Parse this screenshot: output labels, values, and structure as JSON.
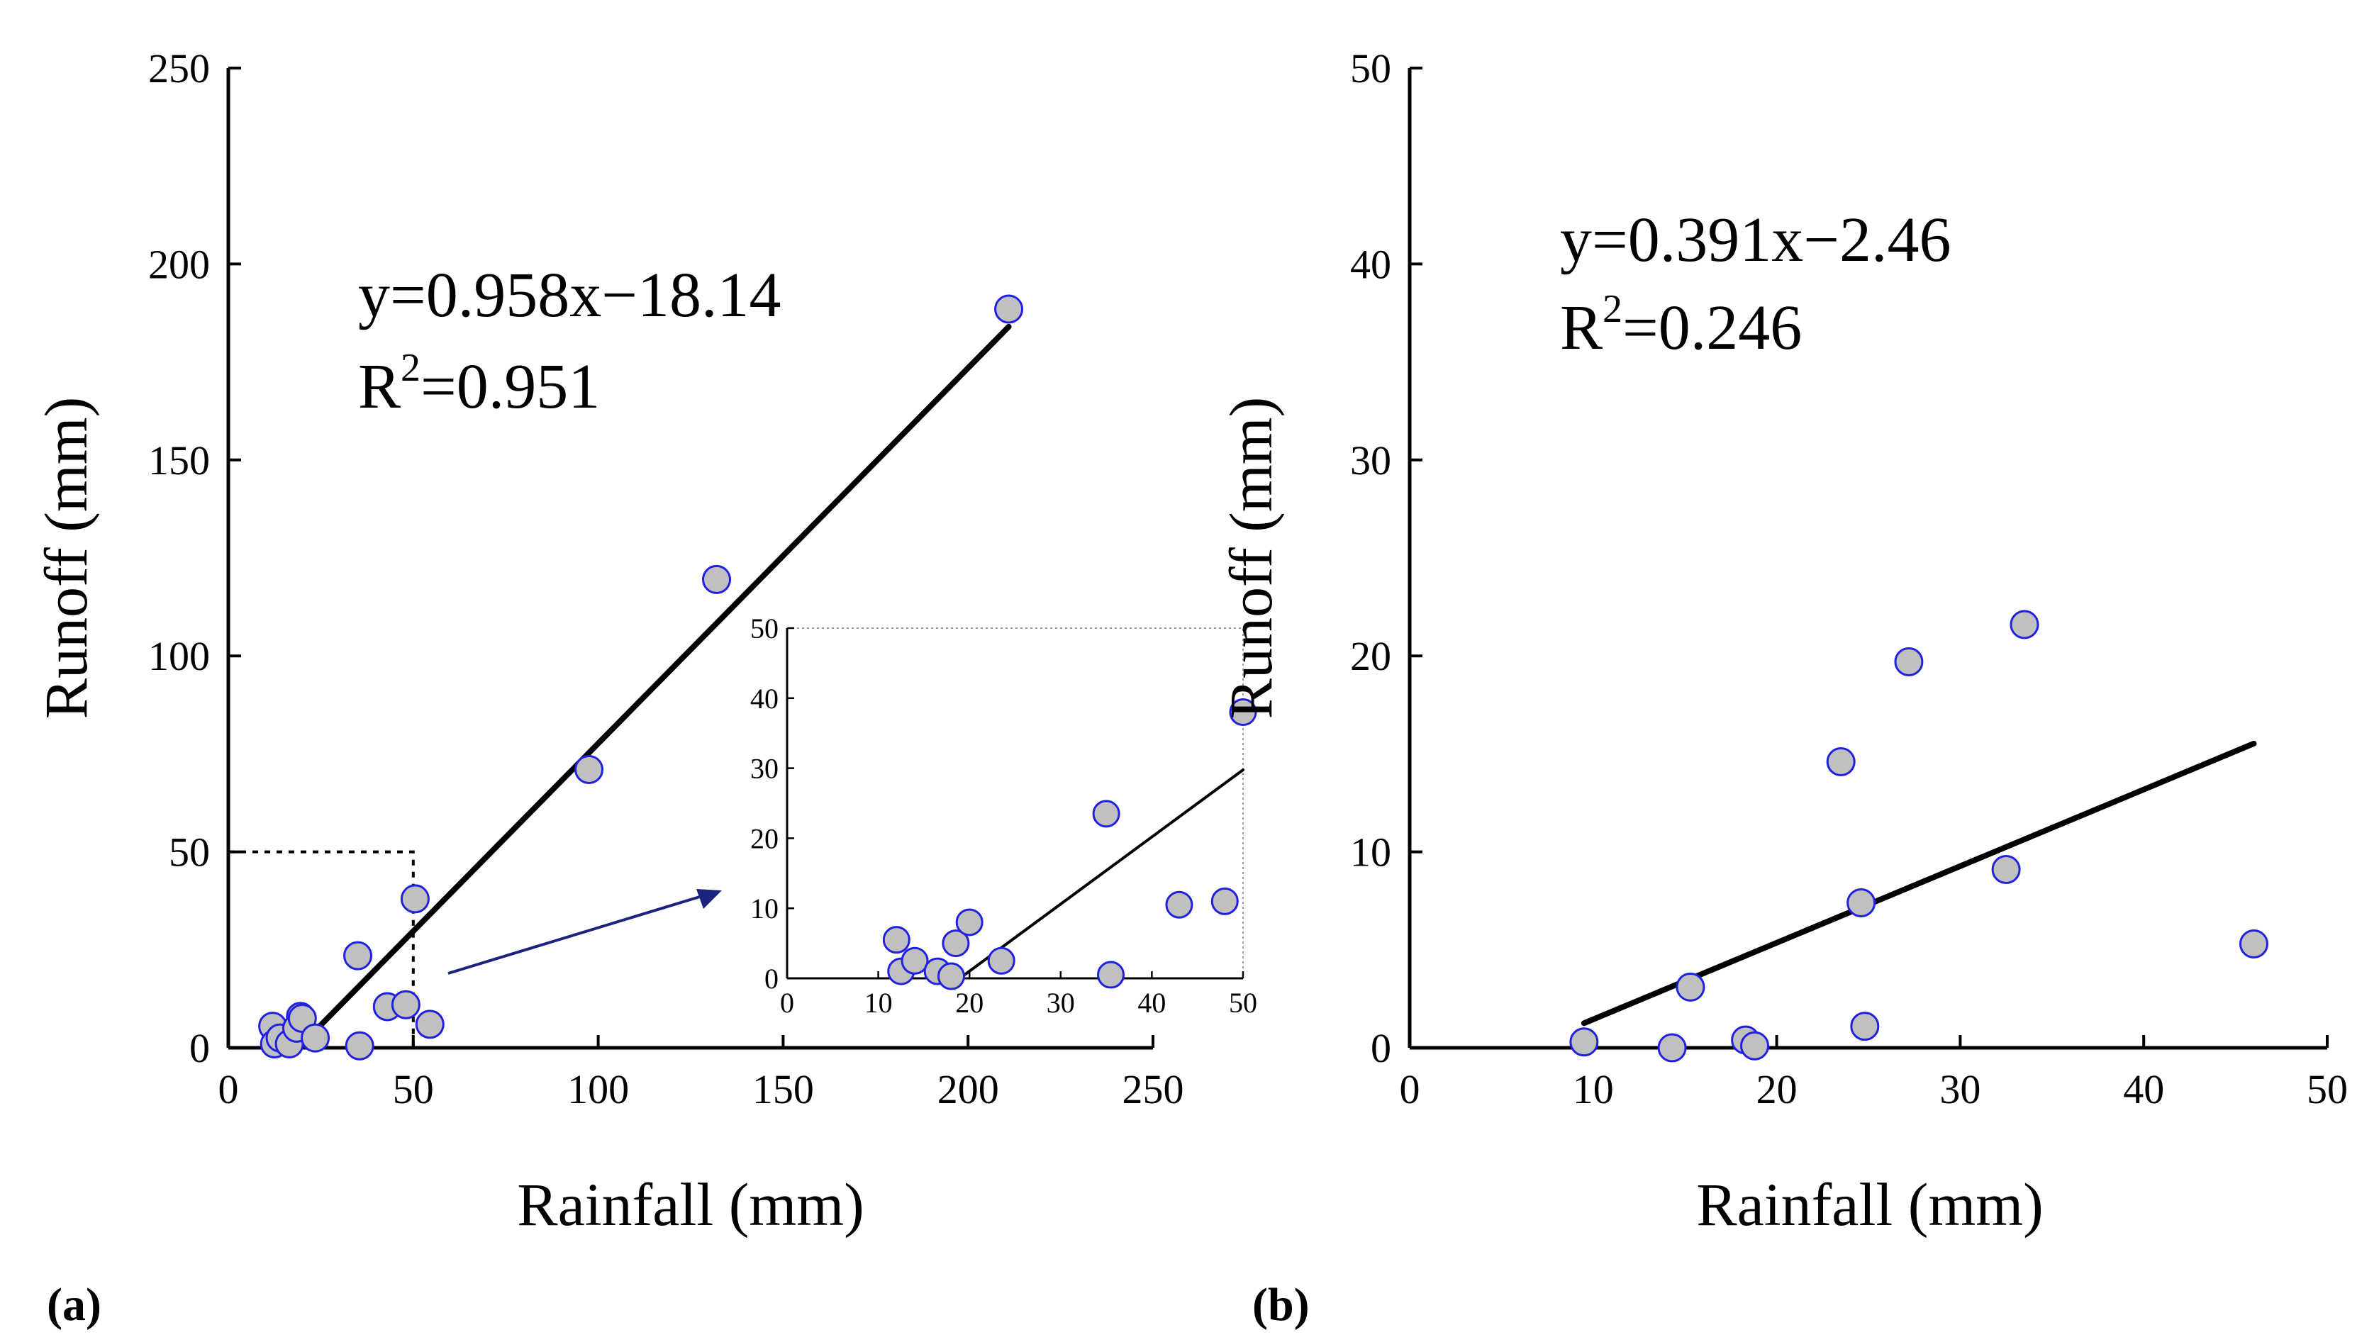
{
  "chart_data": [
    {
      "type": "scatter",
      "panel_label": "(a)",
      "xlabel": "Rainfall (mm)",
      "ylabel": "Runoff (mm)",
      "xlim": [
        0,
        250
      ],
      "ylim": [
        0,
        250
      ],
      "xticks": [
        "0",
        "50",
        "100",
        "150",
        "200",
        "250"
      ],
      "yticks": [
        "0",
        "50",
        "100",
        "150",
        "200",
        "250"
      ],
      "equation": "y=0.958x−18.14",
      "r2_prefix": "R",
      "r2_sup": "2",
      "r2_value": "=0.951",
      "fit": {
        "slope": 0.958,
        "intercept": -18.14,
        "x_range": [
          19,
          211
        ]
      },
      "points": [
        [
          12,
          5.5
        ],
        [
          19.5,
          8
        ],
        [
          12.5,
          1
        ],
        [
          14,
          2.5
        ],
        [
          16.5,
          1
        ],
        [
          18.5,
          5
        ],
        [
          20,
          7.5
        ],
        [
          23.5,
          2.5
        ],
        [
          35,
          23.5
        ],
        [
          35.5,
          0.5
        ],
        [
          43,
          10.5
        ],
        [
          48,
          11
        ],
        [
          50.5,
          38
        ],
        [
          54.5,
          6
        ],
        [
          97.5,
          71
        ],
        [
          132,
          119.5
        ],
        [
          211,
          188.5
        ]
      ],
      "zoom_box": {
        "x": [
          0,
          50
        ],
        "y": [
          0,
          50
        ]
      },
      "marker_fill": "#c0c0c0",
      "marker_edge": "#2020e0",
      "arrow_color": "#1a237e",
      "inset": {
        "xlim": [
          0,
          50
        ],
        "ylim": [
          0,
          50
        ],
        "xticks": [
          "0",
          "10",
          "20",
          "30",
          "40",
          "50"
        ],
        "yticks": [
          "0",
          "10",
          "20",
          "30",
          "40",
          "50"
        ],
        "fit_x_range": [
          19,
          50
        ],
        "points": [
          [
            12,
            5.5
          ],
          [
            12.5,
            1
          ],
          [
            14,
            2.5
          ],
          [
            16.5,
            1
          ],
          [
            18.5,
            5
          ],
          [
            20,
            8
          ],
          [
            18,
            0.3
          ],
          [
            23.5,
            2.5
          ],
          [
            35,
            23.5
          ],
          [
            35.5,
            0.5
          ],
          [
            43,
            10.5
          ],
          [
            48,
            11
          ],
          [
            50,
            38
          ]
        ]
      }
    },
    {
      "type": "scatter",
      "panel_label": "(b)",
      "xlabel": "Rainfall (mm)",
      "ylabel": "Runoff (mm)",
      "xlim": [
        0,
        50
      ],
      "ylim": [
        0,
        50
      ],
      "xticks": [
        "0",
        "10",
        "20",
        "30",
        "40",
        "50"
      ],
      "yticks": [
        "0",
        "10",
        "20",
        "30",
        "40",
        "50"
      ],
      "equation": "y=0.391x−2.46",
      "r2_prefix": "R",
      "r2_sup": "2",
      "r2_value": "=0.246",
      "fit": {
        "slope": 0.391,
        "intercept": -2.46,
        "x_range": [
          9.5,
          46
        ]
      },
      "points": [
        [
          9.5,
          0.3
        ],
        [
          14.3,
          0
        ],
        [
          15.3,
          3.1
        ],
        [
          18.3,
          0.4
        ],
        [
          18.8,
          0.1
        ],
        [
          23.5,
          14.6
        ],
        [
          24.6,
          7.4
        ],
        [
          24.8,
          1.1
        ],
        [
          27.2,
          19.7
        ],
        [
          32.5,
          9.1
        ],
        [
          33.5,
          21.6
        ],
        [
          46,
          5.3
        ]
      ],
      "marker_fill": "#c0c0c0",
      "marker_edge": "#2020e0"
    }
  ]
}
